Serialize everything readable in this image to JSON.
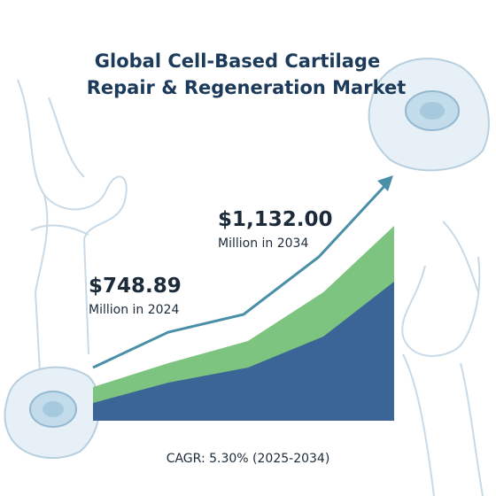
{
  "title_lines": [
    "Global Cell-Based Cartilage",
    "Repair & Regeneration Market"
  ],
  "callouts": [
    {
      "value": "$748.89",
      "note": "Million in 2024"
    },
    {
      "value": "$1,132.00",
      "note": "Million in 2034"
    }
  ],
  "cagr": "CAGR: 5.30% (2025-2034)"
}
